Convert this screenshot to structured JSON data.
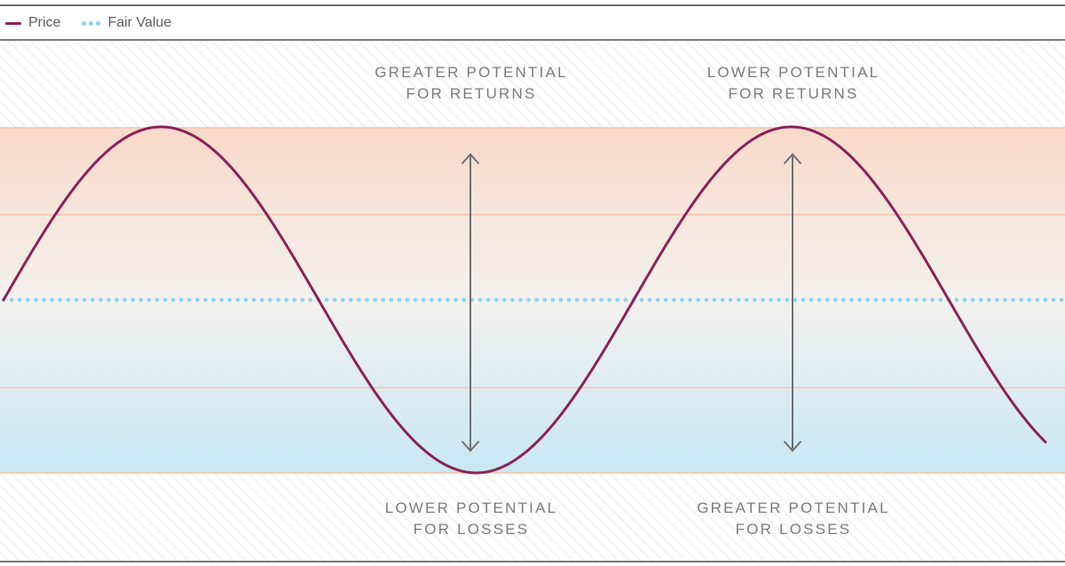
{
  "legend": {
    "price_label": "Price",
    "fair_value_label": "Fair Value"
  },
  "colors": {
    "price": "#8a2257",
    "fair_value": "#8fd3e8",
    "band_lines": "#f5c4aa",
    "arrow": "#6f6f6f",
    "text": "#7b7b7b"
  },
  "annotations": {
    "top_left_line1": "GREATER POTENTIAL",
    "top_left_line2": "FOR RETURNS",
    "top_right_line1": "LOWER POTENTIAL",
    "top_right_line2": "FOR RETURNS",
    "bottom_left_line1": "LOWER POTENTIAL",
    "bottom_left_line2": "FOR LOSSES",
    "bottom_right_line1": "GREATER POTENTIAL",
    "bottom_right_line2": "FOR LOSSES"
  }
}
